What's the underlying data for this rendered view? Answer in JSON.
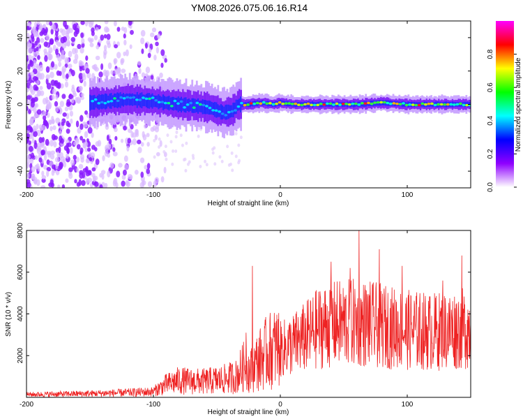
{
  "title": "YM08.2026.075.06.16.R14",
  "colors": {
    "signal": "#ee2222",
    "colorbar": [
      "#ffffff",
      "#8f00ff",
      "#0000ff",
      "#00ffff",
      "#00ff00",
      "#ffff00",
      "#ff0000",
      "#ff00ff"
    ]
  },
  "chart_data": [
    {
      "type": "heatmap",
      "name": "spectrogram",
      "xlabel": "Height of straight line (km)",
      "ylabel": "Frequency (Hz)",
      "xlim": [
        -200,
        150
      ],
      "ylim": [
        -50,
        50
      ],
      "xticks": [
        -200,
        -100,
        0,
        100
      ],
      "yticks": [
        -40,
        -20,
        0,
        20,
        40
      ],
      "xtick_labels": [
        "-200",
        "-100",
        "0",
        "100"
      ],
      "ytick_labels": [
        "-40",
        "-20",
        "0",
        "20",
        "40"
      ],
      "colorbar": {
        "label": "Normalized spectral amplitude",
        "range": [
          0,
          1
        ],
        "ticks": [
          "0.0",
          "0.2",
          "0.4",
          "0.6",
          "0.8"
        ]
      },
      "ridge": [
        [
          -150,
          1
        ],
        [
          -120,
          3
        ],
        [
          -100,
          2
        ],
        [
          -80,
          0
        ],
        [
          -65,
          -1
        ],
        [
          -55,
          -2
        ],
        [
          -45,
          -5
        ],
        [
          -38,
          -4
        ],
        [
          -33,
          0
        ],
        [
          -25,
          0
        ],
        [
          -15,
          1
        ],
        [
          -5,
          0
        ],
        [
          0,
          1
        ],
        [
          10,
          0
        ],
        [
          30,
          0
        ],
        [
          60,
          0
        ],
        [
          80,
          1
        ],
        [
          100,
          0
        ],
        [
          130,
          0
        ],
        [
          150,
          0
        ]
      ]
    },
    {
      "type": "line",
      "name": "snr",
      "xlabel": "Height of straight line (km)",
      "ylabel": "SNR (10 * v/v)",
      "xlim": [
        -200,
        150
      ],
      "ylim": [
        0,
        8000
      ],
      "xticks": [
        -200,
        -100,
        0,
        100
      ],
      "yticks": [
        2000,
        4000,
        6000,
        8000
      ],
      "xtick_labels": [
        "-200",
        "-100",
        "0",
        "100"
      ],
      "ytick_labels": [
        "2000",
        "4000",
        "6000",
        "8000"
      ],
      "envelope": [
        [
          -200,
          150
        ],
        [
          -150,
          200
        ],
        [
          -120,
          250
        ],
        [
          -100,
          300
        ],
        [
          -90,
          650
        ],
        [
          -80,
          850
        ],
        [
          -70,
          800
        ],
        [
          -60,
          800
        ],
        [
          -45,
          900
        ],
        [
          -35,
          1050
        ],
        [
          -27,
          1700
        ],
        [
          -24,
          1300
        ],
        [
          -18,
          1800
        ],
        [
          -10,
          2300
        ],
        [
          0,
          2600
        ],
        [
          10,
          2900
        ],
        [
          20,
          3300
        ],
        [
          30,
          3800
        ],
        [
          40,
          4000
        ],
        [
          60,
          4100
        ],
        [
          80,
          3900
        ],
        [
          100,
          3700
        ],
        [
          120,
          3600
        ],
        [
          150,
          3800
        ]
      ],
      "spikes": [
        [
          -27,
          3100
        ],
        [
          -22,
          6300
        ],
        [
          -20,
          1200
        ],
        [
          40,
          6500
        ],
        [
          55,
          6200
        ],
        [
          62,
          8000
        ],
        [
          78,
          7100
        ],
        [
          96,
          6300
        ],
        [
          128,
          5600
        ],
        [
          143,
          6800
        ]
      ]
    }
  ]
}
